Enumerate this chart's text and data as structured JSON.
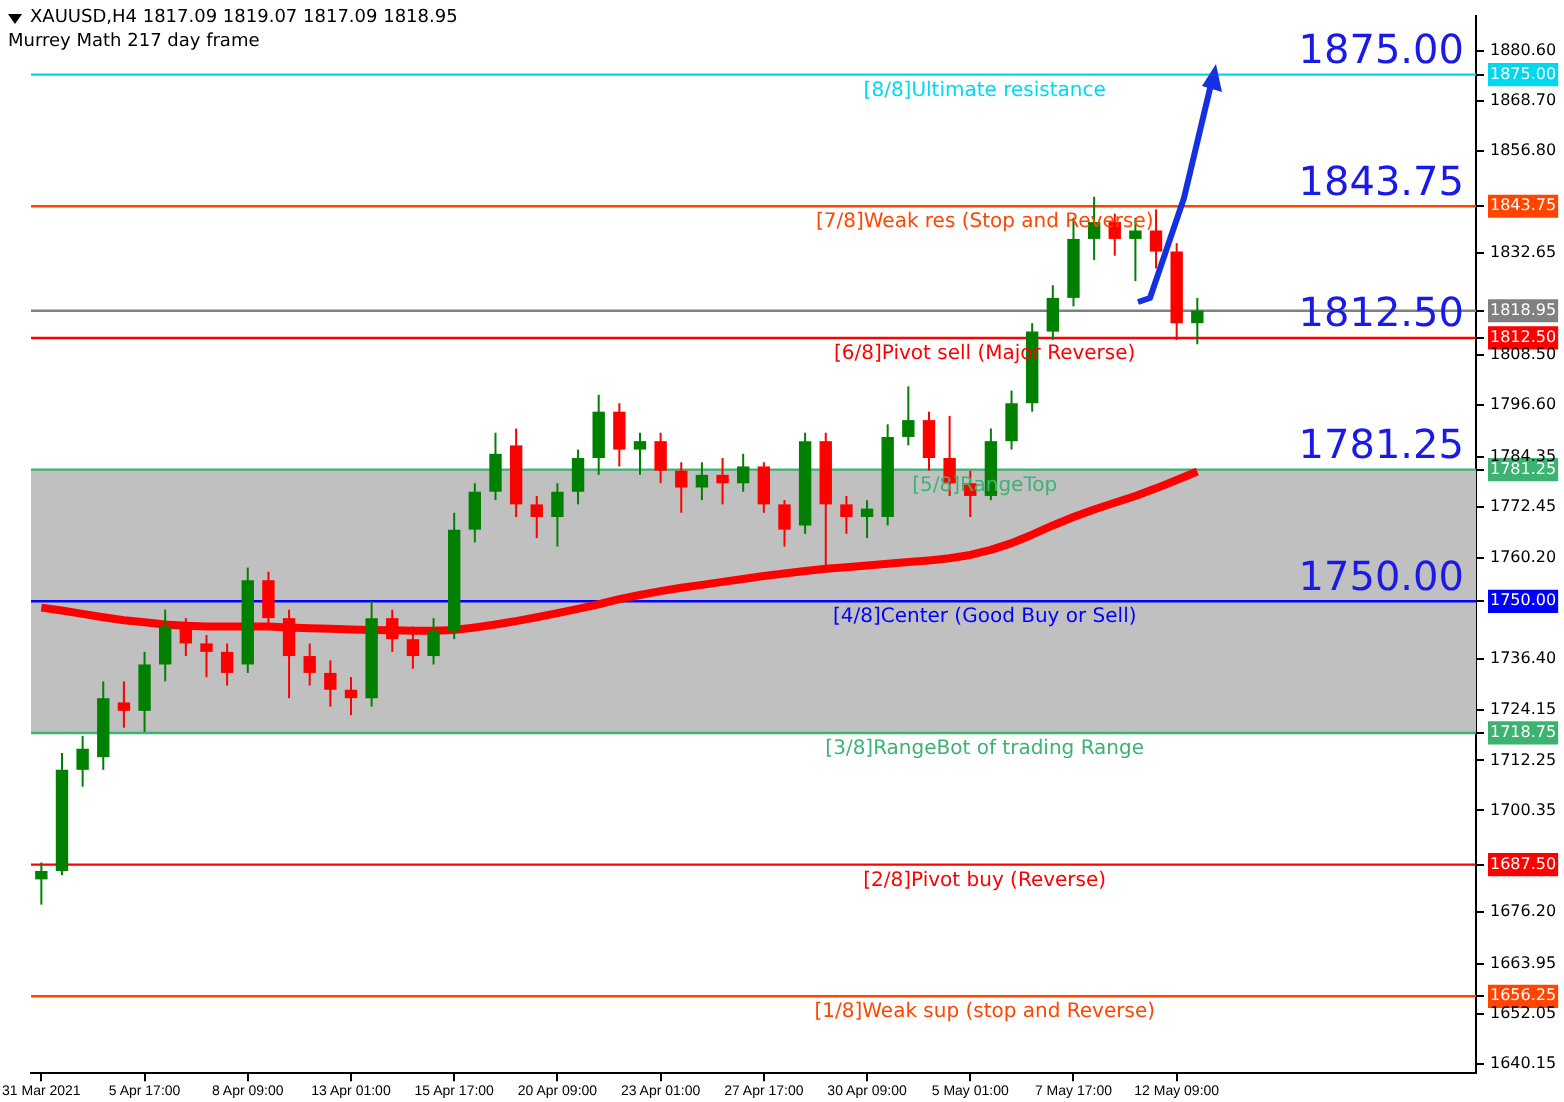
{
  "chart_data": {
    "type": "candlestick",
    "title": "XAUUSD,H4  1817.09 1819.07 1817.09 1818.95",
    "subtitle": "Murrey Math 217 day frame",
    "categories": [
      "31 Mar 2021",
      null,
      null,
      null,
      null,
      "5 Apr 17:00",
      null,
      null,
      null,
      null,
      "8 Apr 09:00",
      null,
      null,
      null,
      null,
      "13 Apr 01:00",
      null,
      null,
      null,
      null,
      "15 Apr 17:00",
      null,
      null,
      null,
      null,
      "20 Apr 09:00",
      null,
      null,
      null,
      null,
      "23 Apr 01:00",
      null,
      null,
      null,
      null,
      "27 Apr 17:00",
      null,
      null,
      null,
      null,
      "30 Apr 09:00",
      null,
      null,
      null,
      null,
      "5 May 01:00",
      null,
      null,
      null,
      null,
      "7 May 17:00",
      null,
      null,
      null,
      null,
      "12 May 09:00",
      null
    ],
    "ohlc": [
      [
        1684,
        1688,
        1678,
        1686
      ],
      [
        1686,
        1714,
        1685,
        1710
      ],
      [
        1710,
        1718,
        1706,
        1715
      ],
      [
        1713,
        1731,
        1710,
        1727
      ],
      [
        1726,
        1731,
        1720,
        1724
      ],
      [
        1724,
        1738,
        1719,
        1735
      ],
      [
        1735,
        1748,
        1731,
        1744
      ],
      [
        1744,
        1746,
        1737,
        1740
      ],
      [
        1740,
        1742,
        1732,
        1738
      ],
      [
        1738,
        1740,
        1730,
        1733
      ],
      [
        1735,
        1758,
        1733,
        1755
      ],
      [
        1755,
        1757,
        1744,
        1746
      ],
      [
        1746,
        1748,
        1727,
        1737
      ],
      [
        1737,
        1740,
        1730,
        1733
      ],
      [
        1733,
        1736,
        1725,
        1729
      ],
      [
        1729,
        1732,
        1723,
        1727
      ],
      [
        1727,
        1750,
        1725,
        1746
      ],
      [
        1746,
        1748,
        1738,
        1741
      ],
      [
        1741,
        1744,
        1734,
        1737
      ],
      [
        1737,
        1746,
        1735,
        1743
      ],
      [
        1743,
        1771,
        1741,
        1767
      ],
      [
        1767,
        1778,
        1764,
        1776
      ],
      [
        1776,
        1790,
        1774,
        1785
      ],
      [
        1787,
        1791,
        1770,
        1773
      ],
      [
        1773,
        1775,
        1765,
        1770
      ],
      [
        1770,
        1778,
        1763,
        1776
      ],
      [
        1776,
        1786,
        1773,
        1784
      ],
      [
        1784,
        1799,
        1780,
        1795
      ],
      [
        1795,
        1797,
        1782,
        1786
      ],
      [
        1786,
        1790,
        1780,
        1788
      ],
      [
        1788,
        1790,
        1778,
        1781
      ],
      [
        1781,
        1783,
        1771,
        1777
      ],
      [
        1777,
        1783,
        1774,
        1780
      ],
      [
        1780,
        1784,
        1773,
        1778
      ],
      [
        1778,
        1785,
        1776,
        1782
      ],
      [
        1782,
        1783,
        1771,
        1773
      ],
      [
        1773,
        1774,
        1763,
        1767
      ],
      [
        1768,
        1790,
        1766,
        1788
      ],
      [
        1788,
        1790,
        1758,
        1773
      ],
      [
        1773,
        1775,
        1766,
        1770
      ],
      [
        1770,
        1774,
        1765,
        1772
      ],
      [
        1770,
        1792,
        1768,
        1789
      ],
      [
        1789,
        1801,
        1787,
        1793
      ],
      [
        1793,
        1795,
        1781,
        1784
      ],
      [
        1784,
        1794,
        1775,
        1778
      ],
      [
        1778,
        1781,
        1770,
        1775
      ],
      [
        1775,
        1791,
        1774,
        1788
      ],
      [
        1788,
        1800,
        1786,
        1797
      ],
      [
        1797,
        1816,
        1795,
        1814
      ],
      [
        1814,
        1825,
        1812,
        1822
      ],
      [
        1822,
        1841,
        1820,
        1836
      ],
      [
        1836,
        1846,
        1831,
        1840
      ],
      [
        1840,
        1842,
        1832,
        1836
      ],
      [
        1836,
        1841,
        1826,
        1838
      ],
      [
        1838,
        1843,
        1829,
        1833
      ],
      [
        1833,
        1835,
        1812,
        1816
      ],
      [
        1816,
        1822,
        1811,
        1819
      ]
    ],
    "colors": [
      "#008000",
      "#008000",
      "#008000",
      "#008000",
      "#ff0000",
      "#008000",
      "#008000",
      "#ff0000",
      "#ff0000",
      "#ff0000",
      "#008000",
      "#ff0000",
      "#ff0000",
      "#ff0000",
      "#ff0000",
      "#ff0000",
      "#008000",
      "#ff0000",
      "#ff0000",
      "#008000",
      "#008000",
      "#008000",
      "#008000",
      "#ff0000",
      "#ff0000",
      "#008000",
      "#008000",
      "#008000",
      "#ff0000",
      "#008000",
      "#ff0000",
      "#ff0000",
      "#008000",
      "#ff0000",
      "#008000",
      "#ff0000",
      "#ff0000",
      "#008000",
      "#ff0000",
      "#ff0000",
      "#008000",
      "#008000",
      "#008000",
      "#ff0000",
      "#ff0000",
      "#ff0000",
      "#008000",
      "#008000",
      "#008000",
      "#008000",
      "#008000",
      "#008000",
      "#ff0000",
      "#008000",
      "#ff0000",
      "#ff0000",
      "#008000"
    ],
    "series": [
      {
        "type": "line",
        "color": "#ff0000",
        "values": [
          1748.5,
          1747.8,
          1747,
          1746.2,
          1745.5,
          1745,
          1744.5,
          1744.2,
          1744,
          1744,
          1744,
          1744,
          1743.8,
          1743.6,
          1743.5,
          1743.3,
          1743.2,
          1743.1,
          1743,
          1743,
          1743.2,
          1743.8,
          1744.5,
          1745.3,
          1746.2,
          1747.2,
          1748.2,
          1749.3,
          1750.5,
          1751.5,
          1752.4,
          1753.2,
          1753.9,
          1754.6,
          1755.3,
          1756,
          1756.6,
          1757.2,
          1757.7,
          1758.1,
          1758.5,
          1758.9,
          1759.3,
          1759.7,
          1760.2,
          1761,
          1762.2,
          1763.8,
          1765.8,
          1768,
          1770,
          1771.8,
          1773.4,
          1775,
          1776.8,
          1778.8,
          1780.8
        ]
      }
    ],
    "ylim": [
      1638,
      1889
    ],
    "yticks": [
      {
        "value": 1875,
        "label": "1875.00"
      },
      {
        "value": 1843.75,
        "label": "1843.75"
      },
      {
        "value": 1818.95,
        "label": "1818.95"
      },
      {
        "value": 1812.5,
        "label": "1812.50"
      },
      {
        "value": 1781.25,
        "label": "1781.25"
      },
      {
        "value": 1750,
        "label": "1750.00"
      },
      {
        "value": 1718.75,
        "label": "1718.75"
      },
      {
        "value": 1687.5,
        "label": "1687.50"
      },
      {
        "value": 1656.25,
        "label": "1656.25"
      },
      {
        "value": 1880.6,
        "label": "1880.60"
      },
      {
        "value": 1868.7,
        "label": "1868.70"
      },
      {
        "value": 1856.8,
        "label": "1856.80"
      },
      {
        "value": 1832.65,
        "label": "1832.65"
      },
      {
        "value": 1808.5,
        "label": "1808.50"
      },
      {
        "value": 1796.6,
        "label": "1796.60"
      },
      {
        "value": 1784.35,
        "label": "1784.35"
      },
      {
        "value": 1772.45,
        "label": "1772.45"
      },
      {
        "value": 1760.2,
        "label": "1760.20"
      },
      {
        "value": 1736.4,
        "label": "1736.40"
      },
      {
        "value": 1724.15,
        "label": "1724.15"
      },
      {
        "value": 1712.25,
        "label": "1712.25"
      },
      {
        "value": 1700.35,
        "label": "1700.35"
      },
      {
        "value": 1676.2,
        "label": "1676.20"
      },
      {
        "value": 1663.95,
        "label": "1663.95"
      },
      {
        "value": 1652.05,
        "label": "1652.05"
      },
      {
        "value": 1640.15,
        "label": "1640.15"
      }
    ],
    "bands": [
      {
        "axis": "y",
        "from": 1718.75,
        "to": 1781.25,
        "color": "#c0c0c0"
      }
    ],
    "ref_lines": [
      {
        "axis": "y",
        "value": 1875,
        "label": "[8/8]Ultimate resistance",
        "color": "#00d8f0"
      },
      {
        "axis": "y",
        "value": 1843.75,
        "label": "[7/8]Weak res (Stop and Reverse)",
        "color": "#ff4500"
      },
      {
        "axis": "y",
        "value": 1812.5,
        "label": "[6/8]Pivot sell (Major Reverse)",
        "color": "#ff0000"
      },
      {
        "axis": "y",
        "value": 1781.25,
        "label": "[5/8]RangeTop",
        "color": "#3cb371"
      },
      {
        "axis": "y",
        "value": 1750,
        "label": "[4/8]Center (Good Buy or Sell)",
        "color": "#0000ff"
      },
      {
        "axis": "y",
        "value": 1718.75,
        "label": "[3/8]RangeBot of trading Range",
        "color": "#3cb371"
      },
      {
        "axis": "y",
        "value": 1687.5,
        "label": "[2/8]Pivot buy (Reverse)",
        "color": "#ff0000"
      },
      {
        "axis": "y",
        "value": 1656.25,
        "label": "[1/8]Weak sup (stop and Reverse)",
        "color": "#ff4500"
      },
      {
        "axis": "y",
        "value": 1818.95,
        "color": "#808080"
      }
    ],
    "annotations": [
      "1875.00",
      "1843.75",
      "1812.50",
      "1781.25",
      "1750.00"
    ],
    "grid": false,
    "legend": false
  }
}
